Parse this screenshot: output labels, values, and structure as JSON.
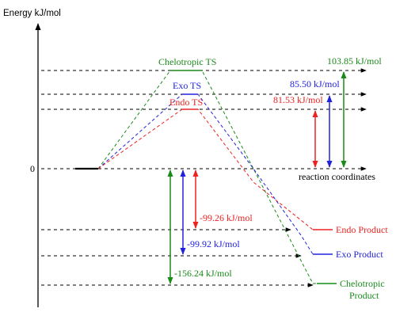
{
  "axes": {
    "y_label": "Energy kJ/mol",
    "x_label": "reaction coordinates",
    "zero_label": "0"
  },
  "colors": {
    "chelotropic": "#1a8a1a",
    "exo": "#2222dd",
    "endo": "#ee2222",
    "neutral": "#000000"
  },
  "pathways": {
    "chelotropic": {
      "ts_label": "Chelotropic TS",
      "barrier": "103.85 kJ/mol",
      "product_label_1": "Chelotropic",
      "product_label_2": "Product",
      "reaction_energy": "-156.24 kJ/mol"
    },
    "exo": {
      "ts_label": "Exo TS",
      "barrier": "85.50 kJ/mol",
      "product_label": "Exo Product",
      "reaction_energy": "-99.92 kJ/mol"
    },
    "endo": {
      "ts_label": "Endo TS",
      "barrier": "81.53 kJ/mol",
      "product_label": "Endo Product",
      "reaction_energy": "-99.26 kJ/mol"
    }
  }
}
